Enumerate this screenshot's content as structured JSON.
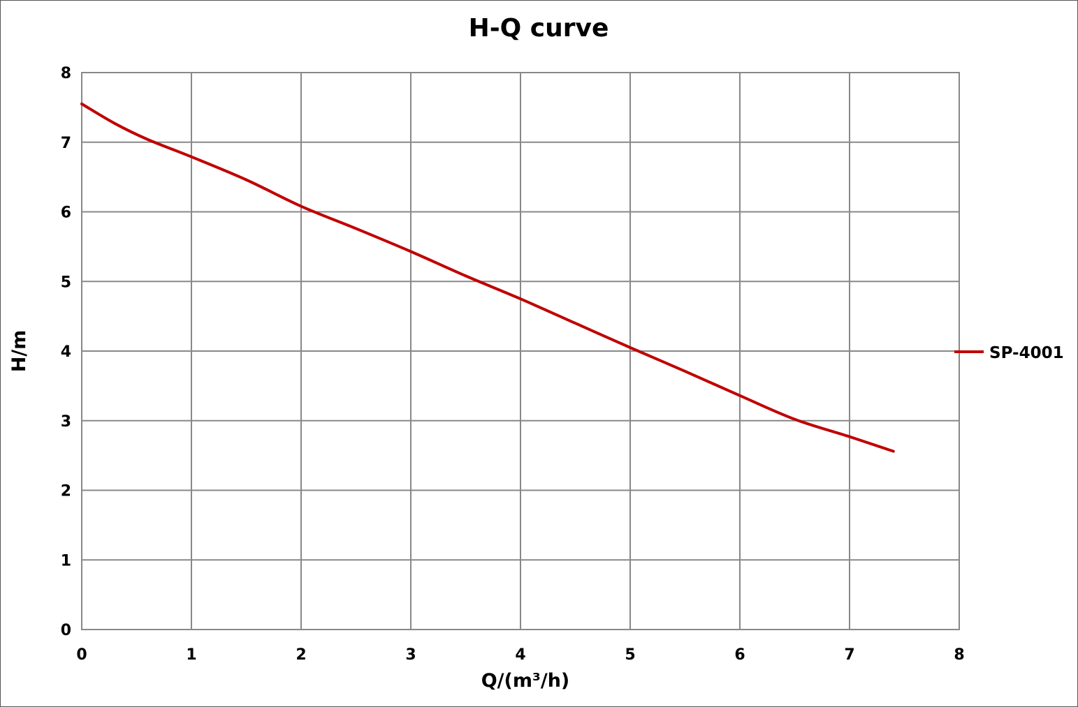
{
  "chart_data": {
    "type": "line",
    "title": "H-Q  curve",
    "xlabel": "Q/(m³/h)",
    "ylabel": "H/m",
    "xlim": [
      0,
      8
    ],
    "ylim": [
      0,
      8
    ],
    "xticks": [
      "0",
      "1",
      "2",
      "3",
      "4",
      "5",
      "6",
      "7",
      "8"
    ],
    "yticks": [
      "0",
      "1",
      "2",
      "3",
      "4",
      "5",
      "6",
      "7",
      "8"
    ],
    "grid": true,
    "legend_position": "right",
    "series": [
      {
        "name": "SP-4001",
        "color": "#c00000",
        "x": [
          0,
          0.3,
          0.6,
          1.0,
          1.5,
          2.0,
          2.5,
          3.0,
          3.5,
          4.0,
          4.5,
          5.0,
          5.5,
          6.0,
          6.5,
          7.0,
          7.4
        ],
        "y": [
          7.55,
          7.27,
          7.04,
          6.79,
          6.46,
          6.08,
          5.76,
          5.43,
          5.08,
          4.75,
          4.4,
          4.05,
          3.71,
          3.36,
          3.02,
          2.77,
          2.56
        ]
      }
    ]
  }
}
